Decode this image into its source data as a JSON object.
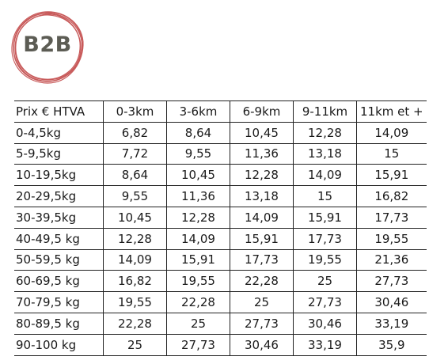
{
  "logo": {
    "text": "B2B"
  },
  "table": {
    "headers": [
      "Prix € HTVA",
      "0-3km",
      "3-6km",
      "6-9km",
      "9-11km",
      "11km et +"
    ],
    "rows": [
      [
        "0-4,5kg",
        "6,82",
        "8,64",
        "10,45",
        "12,28",
        "14,09"
      ],
      [
        "5-9,5kg",
        "7,72",
        "9,55",
        "11,36",
        "13,18",
        "15"
      ],
      [
        "10-19,5kg",
        "8,64",
        "10,45",
        "12,28",
        "14,09",
        "15,91"
      ],
      [
        "20-29,5kg",
        "9,55",
        "11,36",
        "13,18",
        "15",
        "16,82"
      ],
      [
        "30-39,5kg",
        "10,45",
        "12,28",
        "14,09",
        "15,91",
        "17,73"
      ],
      [
        "40-49,5 kg",
        "12,28",
        "14,09",
        "15,91",
        "17,73",
        "19,55"
      ],
      [
        "50-59,5 kg",
        "14,09",
        "15,91",
        "17,73",
        "19,55",
        "21,36"
      ],
      [
        "60-69,5 kg",
        "16,82",
        "19,55",
        "22,28",
        "25",
        "27,73"
      ],
      [
        "70-79,5 kg",
        "19,55",
        "22,28",
        "25",
        "27,73",
        "30,46"
      ],
      [
        "80-89,5 kg",
        "22,28",
        "25",
        "27,73",
        "30,46",
        "33,19"
      ],
      [
        "90-100 kg",
        "25",
        "27,73",
        "30,46",
        "33,19",
        "35,9"
      ]
    ]
  },
  "colors": {
    "logo_ring": "#c85a5a",
    "logo_text": "#5c5c54",
    "rule": "#222222"
  }
}
